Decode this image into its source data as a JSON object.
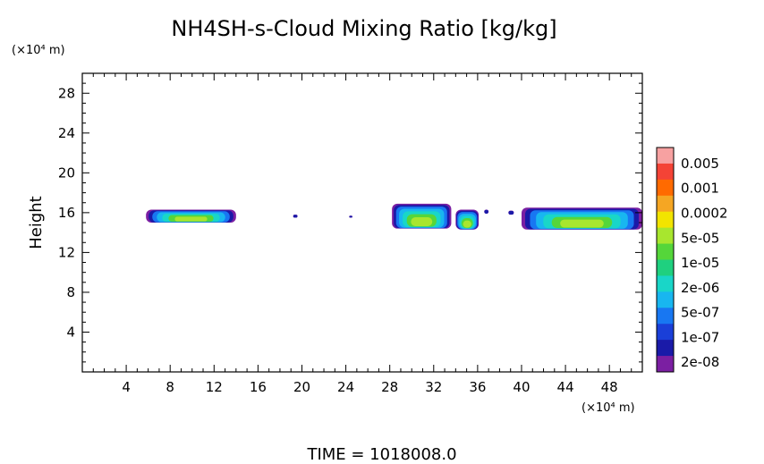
{
  "chart_data": {
    "type": "heatmap",
    "title": "NH4SH-s-Cloud Mixing Ratio [kg/kg]",
    "ylabel": "Height",
    "x_unit": "(×10⁴ m)",
    "y_unit": "(×10⁴ m)",
    "xlim": [
      0,
      51
    ],
    "ylim": [
      0,
      30
    ],
    "x_ticks": [
      "4",
      "8",
      "12",
      "16",
      "20",
      "24",
      "28",
      "32",
      "36",
      "40",
      "44",
      "48"
    ],
    "y_ticks": [
      "4",
      "8",
      "12",
      "16",
      "20",
      "24",
      "28"
    ],
    "time_label": "TIME  =  1018008.0",
    "colorbar": {
      "labels": [
        "0.005",
        "0.001",
        "0.0002",
        "5e-05",
        "1e-05",
        "2e-06",
        "5e-07",
        "1e-07",
        "2e-08"
      ],
      "colors": [
        "#f7a1a1",
        "#f44336",
        "#ff6a00",
        "#f5a623",
        "#f2e400",
        "#a8e62e",
        "#55d63a",
        "#1fd07f",
        "#19d6c8",
        "#18b6f0",
        "#1877f2",
        "#1a3fd8",
        "#1a1aa8",
        "#7b1fa2"
      ]
    },
    "cloud_regions": [
      {
        "x": [
          5.8,
          14.0
        ],
        "y": [
          15.0,
          16.3
        ],
        "peak_level": "1e-05"
      },
      {
        "x": [
          19.2,
          19.6
        ],
        "y": [
          15.5,
          15.8
        ],
        "peak_level": "2e-08"
      },
      {
        "x": [
          24.3,
          24.6
        ],
        "y": [
          15.5,
          15.7
        ],
        "peak_level": "2e-08"
      },
      {
        "x": [
          28.2,
          33.6
        ],
        "y": [
          14.4,
          16.9
        ],
        "peak_level": "1e-05"
      },
      {
        "x": [
          34.0,
          36.1
        ],
        "y": [
          14.3,
          16.3
        ],
        "peak_level": "1e-05"
      },
      {
        "x": [
          36.6,
          37.0
        ],
        "y": [
          15.9,
          16.3
        ],
        "peak_level": "2e-08"
      },
      {
        "x": [
          38.8,
          39.3
        ],
        "y": [
          15.8,
          16.2
        ],
        "peak_level": "2e-08"
      },
      {
        "x": [
          40.0,
          51.0
        ],
        "y": [
          14.3,
          16.5
        ],
        "peak_level": "1e-05"
      }
    ]
  }
}
